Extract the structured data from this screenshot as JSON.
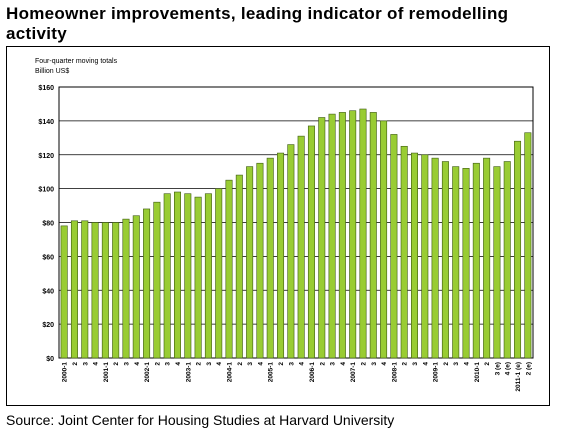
{
  "title": "Homeowner improvements, leading indicator of remodelling activity",
  "source": "Source: Joint Center for Housing Studies at Harvard University",
  "chart_data": {
    "type": "bar",
    "ylabel_line1": "Four-quarter moving totals",
    "ylabel_line2": "Billion US$",
    "ylim": [
      0,
      160
    ],
    "yticks": [
      "$0",
      "$20",
      "$40",
      "$60",
      "$80",
      "$100",
      "$120",
      "$140",
      "$160"
    ],
    "grid": true,
    "bar_color": "#99cc33",
    "categories": [
      "2000-1",
      "2",
      "3",
      "4",
      "2001-1",
      "2",
      "3",
      "4",
      "2002-1",
      "2",
      "3",
      "4",
      "2003-1",
      "2",
      "3",
      "4",
      "2004-1",
      "2",
      "3",
      "4",
      "2005-1",
      "2",
      "3",
      "4",
      "2006-1",
      "2",
      "3",
      "4",
      "2007-1",
      "2",
      "3",
      "4",
      "2008-1",
      "2",
      "3",
      "4",
      "2009-1",
      "2",
      "3",
      "4",
      "2010-1",
      "2",
      "3 (e)",
      "4 (e)",
      "2011-1 (e)",
      "2 (e)"
    ],
    "values": [
      78,
      81,
      81,
      80,
      80,
      80,
      82,
      84,
      88,
      92,
      97,
      98,
      97,
      95,
      97,
      100,
      105,
      108,
      113,
      115,
      118,
      121,
      126,
      131,
      137,
      142,
      144,
      145,
      146,
      147,
      145,
      140,
      132,
      125,
      121,
      120,
      118,
      116,
      113,
      112,
      115,
      118,
      113,
      116,
      128,
      133
    ]
  }
}
